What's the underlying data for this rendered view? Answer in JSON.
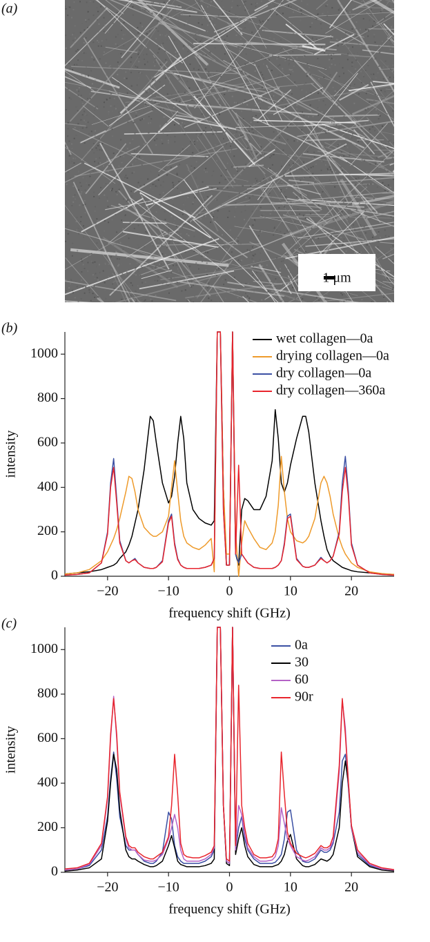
{
  "panel_a": {
    "label": "(a)",
    "scale_bar": "1 μm"
  },
  "chart_data": [
    {
      "type": "line",
      "panel_label": "(b)",
      "x_label": "frequency shift (GHz)",
      "y_label": "intensity",
      "xlim": [
        -27,
        27
      ],
      "ylim": [
        0,
        1100
      ],
      "xticks": [
        {
          "value": -20,
          "label": "−20"
        },
        {
          "value": -10,
          "label": "−10"
        },
        0,
        10,
        20
      ],
      "yticks": [
        0,
        200,
        400,
        600,
        800,
        1000
      ],
      "legend": "upper right",
      "x": [
        -27,
        -25,
        -23,
        -21,
        -20,
        -19.5,
        -19,
        -18.5,
        -18,
        -17,
        -16.5,
        -16,
        -15.5,
        -15,
        -14,
        -13,
        -12.5,
        -12,
        -11,
        -10,
        -9.5,
        -9,
        -8.5,
        -8,
        -7.5,
        -7,
        -6,
        -5,
        -4,
        -3,
        -2.5,
        -2,
        -1.5,
        -1,
        -0.5,
        0,
        0.5,
        1,
        1.5,
        2,
        2.5,
        3,
        4,
        5,
        6,
        7,
        7.5,
        8,
        8.5,
        9,
        9.5,
        10,
        11,
        12,
        12.5,
        13,
        14,
        15,
        15.5,
        16,
        16.5,
        17,
        18,
        18.5,
        19,
        19.5,
        20,
        21,
        23,
        25,
        27
      ],
      "series": [
        {
          "name": "wet collagen—0a",
          "color": "#000000",
          "values": [
            10,
            15,
            20,
            30,
            40,
            45,
            50,
            60,
            80,
            110,
            140,
            180,
            240,
            300,
            480,
            720,
            700,
            600,
            420,
            330,
            360,
            450,
            600,
            720,
            620,
            420,
            300,
            260,
            240,
            230,
            250,
            1100,
            1100,
            400,
            50,
            50,
            1100,
            100,
            50,
            300,
            350,
            340,
            300,
            300,
            360,
            520,
            750,
            620,
            420,
            380,
            420,
            500,
            620,
            720,
            720,
            650,
            420,
            250,
            180,
            120,
            90,
            70,
            50,
            40,
            35,
            30,
            25,
            20,
            15,
            10,
            8
          ]
        },
        {
          "name": "drying collagen—0a",
          "color": "#ee9a2a",
          "values": [
            10,
            15,
            30,
            70,
            110,
            140,
            170,
            210,
            260,
            380,
            450,
            440,
            380,
            300,
            220,
            190,
            180,
            180,
            200,
            270,
            400,
            520,
            380,
            250,
            180,
            150,
            130,
            120,
            140,
            170,
            20,
            1100,
            1100,
            400,
            100,
            100,
            1100,
            200,
            0,
            150,
            250,
            220,
            170,
            130,
            120,
            150,
            200,
            320,
            540,
            380,
            260,
            200,
            160,
            150,
            160,
            180,
            260,
            420,
            450,
            420,
            360,
            280,
            170,
            130,
            100,
            80,
            60,
            40,
            20,
            12,
            8
          ]
        },
        {
          "name": "dry collagen—0a",
          "color": "#3a4fa3",
          "values": [
            5,
            8,
            15,
            60,
            200,
            420,
            530,
            350,
            160,
            70,
            60,
            70,
            80,
            60,
            40,
            35,
            35,
            40,
            70,
            250,
            280,
            150,
            80,
            50,
            40,
            35,
            35,
            35,
            40,
            50,
            80,
            1100,
            1100,
            300,
            50,
            50,
            1100,
            100,
            60,
            100,
            80,
            60,
            40,
            35,
            35,
            35,
            40,
            50,
            70,
            150,
            270,
            280,
            80,
            45,
            40,
            40,
            50,
            85,
            70,
            60,
            70,
            90,
            200,
            420,
            540,
            380,
            150,
            50,
            15,
            8,
            5
          ]
        },
        {
          "name": "dry collagen—360a",
          "color": "#e8242c",
          "values": [
            5,
            8,
            15,
            60,
            190,
            400,
            490,
            330,
            150,
            70,
            60,
            70,
            75,
            60,
            40,
            35,
            35,
            40,
            65,
            240,
            270,
            140,
            75,
            50,
            40,
            35,
            35,
            35,
            40,
            50,
            80,
            1100,
            1100,
            300,
            50,
            50,
            1100,
            100,
            500,
            100,
            80,
            60,
            40,
            35,
            35,
            35,
            40,
            50,
            70,
            140,
            260,
            270,
            75,
            45,
            40,
            40,
            50,
            80,
            70,
            60,
            70,
            90,
            190,
            380,
            490,
            360,
            140,
            50,
            15,
            8,
            5
          ]
        }
      ]
    },
    {
      "type": "line",
      "panel_label": "(c)",
      "x_label": "frequency shift (GHz)",
      "y_label": "intensity",
      "xlim": [
        -27,
        27
      ],
      "ylim": [
        0,
        1100
      ],
      "xticks": [
        {
          "value": -20,
          "label": "−20"
        },
        {
          "value": -10,
          "label": "−10"
        },
        0,
        10,
        20
      ],
      "yticks": [
        0,
        200,
        400,
        600,
        800,
        1000
      ],
      "legend": "upper right",
      "x": [
        -27,
        -25,
        -23,
        -21,
        -20,
        -19.5,
        -19,
        -18.5,
        -18,
        -17,
        -16.5,
        -16,
        -15.5,
        -15,
        -14,
        -13,
        -12.5,
        -12,
        -11,
        -10,
        -9.5,
        -9,
        -8.5,
        -8,
        -7.5,
        -7,
        -6,
        -5,
        -4,
        -3,
        -2.5,
        -2,
        -1.5,
        -1,
        -0.5,
        0,
        0.5,
        1,
        1.5,
        2,
        2.5,
        3,
        4,
        5,
        6,
        7,
        7.5,
        8,
        8.5,
        9,
        9.5,
        10,
        11,
        12,
        12.5,
        13,
        14,
        15,
        15.5,
        16,
        16.5,
        17,
        18,
        18.5,
        19,
        19.5,
        20,
        21,
        23,
        25,
        27
      ],
      "series": [
        {
          "name": "0a",
          "color": "#3a4fa3",
          "values": [
            10,
            15,
            30,
            100,
            250,
            420,
            540,
            420,
            250,
            120,
            100,
            100,
            100,
            80,
            50,
            40,
            40,
            50,
            90,
            270,
            240,
            120,
            70,
            50,
            40,
            40,
            40,
            40,
            50,
            70,
            100,
            1100,
            1100,
            300,
            50,
            40,
            1100,
            100,
            200,
            250,
            150,
            100,
            60,
            40,
            40,
            40,
            45,
            60,
            80,
            150,
            270,
            280,
            100,
            50,
            45,
            45,
            60,
            100,
            90,
            90,
            100,
            130,
            270,
            500,
            530,
            380,
            200,
            80,
            30,
            15,
            10
          ]
        },
        {
          "name": "30",
          "color": "#000000",
          "values": [
            5,
            10,
            20,
            60,
            230,
            400,
            530,
            460,
            280,
            100,
            70,
            60,
            60,
            50,
            35,
            25,
            25,
            30,
            50,
            120,
            165,
            110,
            50,
            35,
            30,
            25,
            25,
            25,
            30,
            40,
            60,
            1100,
            1100,
            300,
            40,
            30,
            1100,
            80,
            150,
            200,
            120,
            70,
            35,
            25,
            25,
            25,
            30,
            35,
            50,
            80,
            140,
            170,
            60,
            30,
            25,
            25,
            35,
            60,
            55,
            50,
            60,
            80,
            200,
            400,
            500,
            400,
            200,
            70,
            25,
            10,
            5
          ]
        },
        {
          "name": "60",
          "color": "#b462c6",
          "values": [
            10,
            15,
            35,
            120,
            330,
            600,
            790,
            600,
            350,
            150,
            110,
            100,
            100,
            80,
            55,
            50,
            50,
            55,
            80,
            150,
            200,
            260,
            200,
            100,
            60,
            50,
            50,
            50,
            60,
            80,
            110,
            1100,
            1100,
            300,
            50,
            40,
            1100,
            100,
            300,
            260,
            170,
            110,
            70,
            50,
            50,
            55,
            70,
            120,
            290,
            220,
            150,
            120,
            70,
            55,
            50,
            55,
            70,
            110,
            100,
            100,
            110,
            140,
            450,
            770,
            650,
            400,
            200,
            90,
            35,
            15,
            10
          ]
        },
        {
          "name": "90r",
          "color": "#e8242c",
          "values": [
            15,
            20,
            40,
            130,
            340,
            620,
            780,
            620,
            360,
            160,
            120,
            110,
            110,
            90,
            70,
            60,
            60,
            70,
            90,
            160,
            300,
            530,
            350,
            130,
            80,
            70,
            65,
            65,
            75,
            90,
            120,
            1100,
            1100,
            300,
            60,
            50,
            1100,
            120,
            840,
            300,
            200,
            130,
            80,
            65,
            65,
            70,
            90,
            150,
            540,
            350,
            180,
            130,
            85,
            70,
            65,
            70,
            85,
            120,
            110,
            110,
            120,
            160,
            480,
            780,
            620,
            410,
            210,
            100,
            40,
            20,
            12
          ]
        }
      ]
    }
  ]
}
